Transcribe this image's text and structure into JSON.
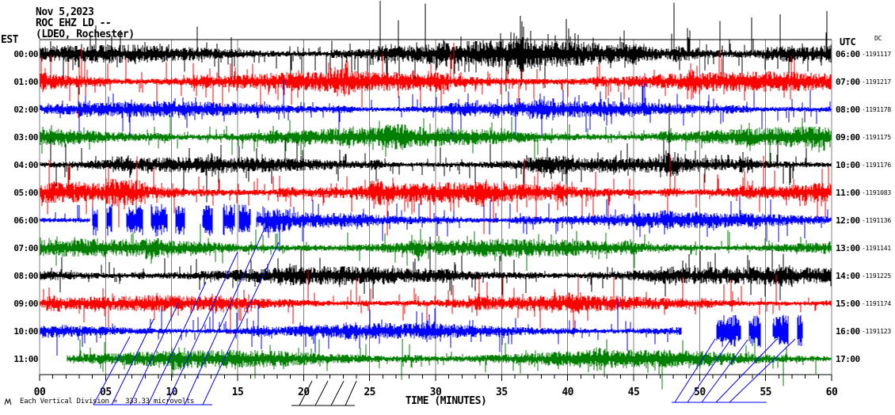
{
  "header": {
    "date": "Nov 5,2023",
    "station": "ROC EHZ LD --",
    "location": "(LDEO, Rochester)"
  },
  "axes": {
    "left_tz": "EST",
    "right_tz": "UTC",
    "dc_label": "DC",
    "x_title": "TIME (MINUTES)",
    "x_ticks": [
      "00",
      "05",
      "10",
      "15",
      "20",
      "25",
      "30",
      "35",
      "40",
      "45",
      "50",
      "55",
      "60"
    ]
  },
  "footer": {
    "scale_note": "Each Vertical Division =  333.33 microvolts"
  },
  "colors": {
    "background": "#ffffff",
    "grid": "#808080",
    "frame_side": "#808080",
    "frame_top_bottom": "#000000",
    "trace_map": {
      "black": "#000000",
      "red": "#ff0000",
      "blue": "#0000ff",
      "green": "#007f00"
    }
  },
  "chart_data": {
    "type": "line",
    "subtype": "helicorder-seismogram",
    "title": "ROC EHZ LD -- (LDEO, Rochester) Nov 5,2023",
    "xlabel": "TIME (MINUTES)",
    "x_axis": {
      "min": 0,
      "max": 60,
      "major_tick": 5,
      "minor_tick": 1,
      "tick_labels": [
        "00",
        "05",
        "10",
        "15",
        "20",
        "25",
        "30",
        "35",
        "40",
        "45",
        "50",
        "55",
        "60"
      ]
    },
    "vertical_division_scale": "333.33 microvolts",
    "rows": [
      {
        "est": "00:00",
        "utc": "06:00",
        "dc": "-1191117",
        "color": "black",
        "seed": 11,
        "start_min": 0,
        "amp": 8,
        "spike": 30,
        "spike_rate": 0.13,
        "bursts": [
          [
            22,
            60,
            1.5
          ],
          [
            25.5,
            27,
            2.1
          ],
          [
            30,
            31,
            2.3
          ],
          [
            36,
            37,
            1.9
          ],
          [
            44,
            46,
            2.1
          ],
          [
            48,
            50,
            2.3
          ],
          [
            55,
            57,
            2.1
          ]
        ]
      },
      {
        "est": "01:00",
        "utc": "07:00",
        "dc": "-1191217",
        "color": "red",
        "seed": 22,
        "start_min": 0,
        "amp": 9,
        "spike": 30,
        "spike_rate": 0.12,
        "bursts": [
          [
            0,
            5,
            1.5
          ],
          [
            11.5,
            13,
            1.5
          ],
          [
            22,
            23.5,
            1.4
          ],
          [
            29.5,
            31,
            1.5
          ],
          [
            42,
            43,
            1.3
          ],
          [
            49,
            50,
            1.4
          ]
        ]
      },
      {
        "est": "02:00",
        "utc": "08:00",
        "dc": "-1191178",
        "color": "blue",
        "seed": 33,
        "start_min": 0,
        "amp": 7,
        "spike": 28,
        "spike_rate": 0.11,
        "bursts": [
          [
            3,
            4,
            1.4
          ],
          [
            22,
            24,
            1.5
          ],
          [
            31,
            33,
            1.5
          ],
          [
            37,
            39,
            1.4
          ],
          [
            52,
            54,
            1.4
          ]
        ]
      },
      {
        "est": "03:00",
        "utc": "09:00",
        "dc": "-1191175",
        "color": "green",
        "seed": 44,
        "start_min": 0,
        "amp": 9,
        "spike": 20,
        "spike_rate": 0.09,
        "bursts": [
          [
            8,
            10,
            1.3
          ],
          [
            17,
            18,
            1.3
          ],
          [
            26,
            28,
            1.3
          ],
          [
            47,
            48,
            1.3
          ]
        ]
      },
      {
        "est": "04:00",
        "utc": "10:00",
        "dc": "-1191176",
        "color": "black",
        "seed": 55,
        "start_min": 0,
        "amp": 7,
        "spike": 30,
        "spike_rate": 0.1,
        "bursts": [
          [
            5.5,
            7,
            1.8
          ],
          [
            12.5,
            13.5,
            1.5
          ],
          [
            25,
            26,
            1.7
          ],
          [
            37,
            40,
            1.5
          ],
          [
            47.5,
            48.5,
            1.5
          ],
          [
            53,
            54,
            1.7
          ]
        ]
      },
      {
        "est": "05:00",
        "utc": "11:00",
        "dc": "-1191083",
        "color": "red",
        "seed": 66,
        "start_min": 0,
        "amp": 9,
        "spike": 34,
        "spike_rate": 0.13,
        "bursts": [
          [
            5,
            8,
            1.7
          ],
          [
            18,
            19.5,
            1.5
          ],
          [
            25,
            26.5,
            1.5
          ],
          [
            33,
            34,
            1.4
          ],
          [
            39,
            40,
            1.6
          ],
          [
            47,
            48.5,
            1.5
          ],
          [
            53,
            54,
            1.5
          ]
        ]
      },
      {
        "est": "06:00",
        "utc": "12:00",
        "dc": "-1191136",
        "color": "blue",
        "seed": 77,
        "start_min": 0,
        "amp": 7,
        "spike": 26,
        "spike_rate": 0.1,
        "gap": [
          3.8,
          16.4
        ],
        "blobs": [
          [
            4.0,
            4.4
          ],
          [
            5.1,
            5.5
          ],
          [
            6.6,
            7.8
          ],
          [
            8.4,
            9.7
          ],
          [
            10.3,
            11.0
          ],
          [
            12.3,
            13.1
          ],
          [
            13.9,
            14.8
          ],
          [
            15.1,
            16.0
          ]
        ],
        "bursts": [
          [
            17,
            19,
            1.5
          ],
          [
            24,
            25,
            1.3
          ],
          [
            30,
            32,
            1.4
          ],
          [
            36,
            38,
            1.5
          ],
          [
            47,
            48,
            1.3
          ]
        ]
      },
      {
        "est": "07:00",
        "utc": "13:00",
        "dc": "-1191141",
        "color": "green",
        "seed": 88,
        "start_min": 0,
        "amp": 8,
        "spike": 20,
        "spike_rate": 0.09,
        "bursts": [
          [
            8,
            9,
            1.4
          ],
          [
            20,
            21,
            1.3
          ],
          [
            28,
            29,
            1.4
          ],
          [
            44,
            45,
            1.3
          ]
        ]
      },
      {
        "est": "08:00",
        "utc": "14:00",
        "dc": "-1191225",
        "color": "black",
        "seed": 99,
        "start_min": 0,
        "amp": 8,
        "spike": 26,
        "spike_rate": 0.1,
        "bursts": [
          [
            7,
            8,
            1.4
          ],
          [
            19,
            20,
            1.3
          ],
          [
            30,
            31,
            1.3
          ],
          [
            36,
            38,
            1.3
          ],
          [
            47,
            48,
            1.4
          ],
          [
            56,
            57,
            1.3
          ]
        ]
      },
      {
        "est": "09:00",
        "utc": "15:00",
        "dc": "-1191174",
        "color": "red",
        "seed": 111,
        "start_min": 0,
        "amp": 7,
        "spike": 30,
        "spike_rate": 0.11,
        "bursts": [
          [
            0.5,
            1.5,
            1.6
          ],
          [
            13,
            14,
            1.3
          ],
          [
            24,
            25,
            1.4
          ],
          [
            33,
            34,
            1.3
          ],
          [
            40,
            41,
            1.4
          ],
          [
            50,
            51,
            1.3
          ]
        ]
      },
      {
        "est": "10:00",
        "utc": "16:00",
        "dc": "-1191123",
        "color": "blue",
        "seed": 122,
        "start_min": 0,
        "amp": 7,
        "spike": 28,
        "spike_rate": 0.1,
        "gap": [
          48.6,
          60
        ],
        "blobs": [
          [
            51.3,
            53.1
          ],
          [
            53.7,
            54.6
          ],
          [
            55.5,
            56.7
          ],
          [
            57.4,
            57.8
          ]
        ],
        "bursts": [
          [
            9,
            10,
            1.3
          ],
          [
            16,
            17.5,
            1.5
          ],
          [
            23,
            24,
            1.3
          ],
          [
            29,
            30,
            1.4
          ],
          [
            40,
            41,
            1.4
          ]
        ]
      },
      {
        "est": "11:00",
        "utc": "17:00",
        "dc": "",
        "color": "green",
        "seed": 133,
        "start_min": 2.1,
        "amp": 8,
        "spike": 20,
        "spike_rate": 0.09,
        "bursts": [
          [
            10,
            11,
            1.3
          ],
          [
            27,
            29,
            1.5
          ],
          [
            42,
            43,
            1.3
          ]
        ]
      }
    ],
    "dropout_fans": [
      {
        "color": "#0000ff",
        "base": [
          118,
          511,
          268,
          511
        ],
        "lines": [
          [
            118,
            511,
            164,
            425
          ],
          [
            141,
            511,
            194,
            403
          ],
          [
            164,
            511,
            226,
            381
          ],
          [
            187,
            511,
            260,
            356
          ],
          [
            210,
            511,
            300,
            318
          ],
          [
            233,
            511,
            338,
            280
          ],
          [
            256,
            511,
            352,
            306
          ]
        ]
      },
      {
        "color": "#000000",
        "base": [
          368,
          512,
          448,
          512
        ],
        "lines": [
          [
            378,
            512,
            394,
            481
          ],
          [
            398,
            512,
            414,
            481
          ],
          [
            418,
            512,
            434,
            481
          ],
          [
            436,
            512,
            450,
            481
          ]
        ]
      },
      {
        "color": "#0000ff",
        "base": [
          848,
          508,
          968,
          508
        ],
        "lines": [
          [
            852,
            508,
            903,
            428
          ],
          [
            868,
            508,
            923,
            428
          ],
          [
            886,
            508,
            944,
            429
          ],
          [
            904,
            508,
            981,
            428
          ],
          [
            921,
            508,
            1004,
            428
          ]
        ]
      }
    ]
  }
}
